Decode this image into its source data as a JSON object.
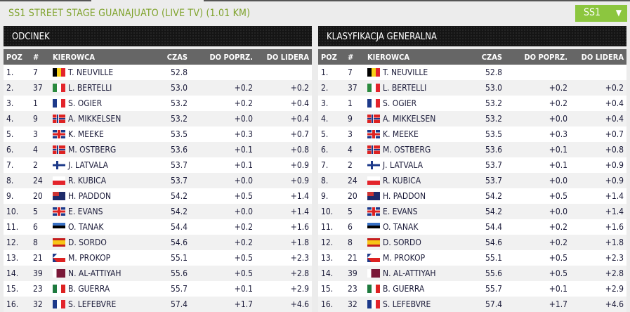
{
  "header": {
    "title": "SS1 STREET STAGE GUANAJUATO (LIVE TV) (1.01 KM)",
    "stage_select": "SS1",
    "dropdown_icon": "triangle-down"
  },
  "columns": {
    "poz": "POZ",
    "num": "#",
    "driver": "KIEROWCA",
    "time": "CZAS",
    "prev": "DO POPRZ.",
    "leader": "DO LIDERA"
  },
  "panels": [
    {
      "title": "ODCINEK",
      "rows": [
        {
          "poz": "1.",
          "num": "7",
          "flag": "BE",
          "driver": "T. NEUVILLE",
          "time": "52.8",
          "prev": "",
          "leader": ""
        },
        {
          "poz": "2.",
          "num": "37",
          "flag": "IT",
          "driver": "L. BERTELLI",
          "time": "53.0",
          "prev": "+0.2",
          "leader": "+0.2"
        },
        {
          "poz": "3.",
          "num": "1",
          "flag": "FR",
          "driver": "S. OGIER",
          "time": "53.2",
          "prev": "+0.2",
          "leader": "+0.4"
        },
        {
          "poz": "4.",
          "num": "9",
          "flag": "NO",
          "driver": "A. MIKKELSEN",
          "time": "53.2",
          "prev": "+0.0",
          "leader": "+0.4"
        },
        {
          "poz": "5.",
          "num": "3",
          "flag": "GB",
          "driver": "K. MEEKE",
          "time": "53.5",
          "prev": "+0.3",
          "leader": "+0.7"
        },
        {
          "poz": "6.",
          "num": "4",
          "flag": "NO",
          "driver": "M. OSTBERG",
          "time": "53.6",
          "prev": "+0.1",
          "leader": "+0.8"
        },
        {
          "poz": "7.",
          "num": "2",
          "flag": "FI",
          "driver": "J. LATVALA",
          "time": "53.7",
          "prev": "+0.1",
          "leader": "+0.9"
        },
        {
          "poz": "8.",
          "num": "24",
          "flag": "PL",
          "driver": "R. KUBICA",
          "time": "53.7",
          "prev": "+0.0",
          "leader": "+0.9"
        },
        {
          "poz": "9.",
          "num": "20",
          "flag": "NZ",
          "driver": "H. PADDON",
          "time": "54.2",
          "prev": "+0.5",
          "leader": "+1.4"
        },
        {
          "poz": "10.",
          "num": "5",
          "flag": "GB",
          "driver": "E. EVANS",
          "time": "54.2",
          "prev": "+0.0",
          "leader": "+1.4"
        },
        {
          "poz": "11.",
          "num": "6",
          "flag": "EE",
          "driver": "O. TANAK",
          "time": "54.4",
          "prev": "+0.2",
          "leader": "+1.6"
        },
        {
          "poz": "12.",
          "num": "8",
          "flag": "ES",
          "driver": "D. SORDO",
          "time": "54.6",
          "prev": "+0.2",
          "leader": "+1.8"
        },
        {
          "poz": "13.",
          "num": "21",
          "flag": "CZ",
          "driver": "M. PROKOP",
          "time": "55.1",
          "prev": "+0.5",
          "leader": "+2.3"
        },
        {
          "poz": "14.",
          "num": "39",
          "flag": "QA",
          "driver": "N. AL-ATTIYAH",
          "time": "55.6",
          "prev": "+0.5",
          "leader": "+2.8"
        },
        {
          "poz": "15.",
          "num": "23",
          "flag": "MX",
          "driver": "B. GUERRA",
          "time": "55.7",
          "prev": "+0.1",
          "leader": "+2.9"
        },
        {
          "poz": "16.",
          "num": "32",
          "flag": "FR",
          "driver": "S. LEFEBVRE",
          "time": "57.4",
          "prev": "+1.7",
          "leader": "+4.6"
        }
      ]
    },
    {
      "title": "KLASYFIKACJA GENERALNA",
      "rows": [
        {
          "poz": "1.",
          "num": "7",
          "flag": "BE",
          "driver": "T. NEUVILLE",
          "time": "52.8",
          "prev": "",
          "leader": ""
        },
        {
          "poz": "2.",
          "num": "37",
          "flag": "IT",
          "driver": "L. BERTELLI",
          "time": "53.0",
          "prev": "+0.2",
          "leader": "+0.2"
        },
        {
          "poz": "3.",
          "num": "1",
          "flag": "FR",
          "driver": "S. OGIER",
          "time": "53.2",
          "prev": "+0.2",
          "leader": "+0.4"
        },
        {
          "poz": "4.",
          "num": "9",
          "flag": "NO",
          "driver": "A. MIKKELSEN",
          "time": "53.2",
          "prev": "+0.0",
          "leader": "+0.4"
        },
        {
          "poz": "5.",
          "num": "3",
          "flag": "GB",
          "driver": "K. MEEKE",
          "time": "53.5",
          "prev": "+0.3",
          "leader": "+0.7"
        },
        {
          "poz": "6.",
          "num": "4",
          "flag": "NO",
          "driver": "M. OSTBERG",
          "time": "53.6",
          "prev": "+0.1",
          "leader": "+0.8"
        },
        {
          "poz": "7.",
          "num": "2",
          "flag": "FI",
          "driver": "J. LATVALA",
          "time": "53.7",
          "prev": "+0.1",
          "leader": "+0.9"
        },
        {
          "poz": "8.",
          "num": "24",
          "flag": "PL",
          "driver": "R. KUBICA",
          "time": "53.7",
          "prev": "+0.0",
          "leader": "+0.9"
        },
        {
          "poz": "9.",
          "num": "20",
          "flag": "NZ",
          "driver": "H. PADDON",
          "time": "54.2",
          "prev": "+0.5",
          "leader": "+1.4"
        },
        {
          "poz": "10.",
          "num": "5",
          "flag": "GB",
          "driver": "E. EVANS",
          "time": "54.2",
          "prev": "+0.0",
          "leader": "+1.4"
        },
        {
          "poz": "11.",
          "num": "6",
          "flag": "EE",
          "driver": "O. TANAK",
          "time": "54.4",
          "prev": "+0.2",
          "leader": "+1.6"
        },
        {
          "poz": "12.",
          "num": "8",
          "flag": "ES",
          "driver": "D. SORDO",
          "time": "54.6",
          "prev": "+0.2",
          "leader": "+1.8"
        },
        {
          "poz": "13.",
          "num": "21",
          "flag": "CZ",
          "driver": "M. PROKOP",
          "time": "55.1",
          "prev": "+0.5",
          "leader": "+2.3"
        },
        {
          "poz": "14.",
          "num": "39",
          "flag": "QA",
          "driver": "N. AL-ATTIYAH",
          "time": "55.6",
          "prev": "+0.5",
          "leader": "+2.8"
        },
        {
          "poz": "15.",
          "num": "23",
          "flag": "MX",
          "driver": "B. GUERRA",
          "time": "55.7",
          "prev": "+0.1",
          "leader": "+2.9"
        },
        {
          "poz": "16.",
          "num": "32",
          "flag": "FR",
          "driver": "S. LEFEBVRE",
          "time": "57.4",
          "prev": "+1.7",
          "leader": "+4.6"
        }
      ]
    }
  ]
}
